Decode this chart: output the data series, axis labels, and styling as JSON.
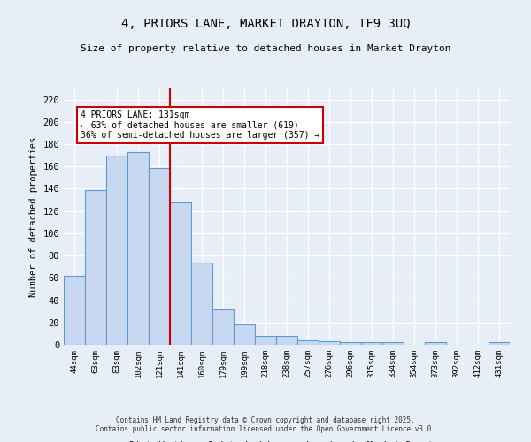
{
  "title1": "4, PRIORS LANE, MARKET DRAYTON, TF9 3UQ",
  "title2": "Size of property relative to detached houses in Market Drayton",
  "xlabel": "Distribution of detached houses by size in Market Drayton",
  "ylabel": "Number of detached properties",
  "categories": [
    "44sqm",
    "63sqm",
    "83sqm",
    "102sqm",
    "121sqm",
    "141sqm",
    "160sqm",
    "179sqm",
    "199sqm",
    "218sqm",
    "238sqm",
    "257sqm",
    "276sqm",
    "296sqm",
    "315sqm",
    "334sqm",
    "354sqm",
    "373sqm",
    "392sqm",
    "412sqm",
    "431sqm"
  ],
  "values": [
    62,
    139,
    170,
    173,
    159,
    128,
    74,
    32,
    18,
    8,
    8,
    4,
    3,
    2,
    2,
    2,
    0,
    2,
    0,
    0,
    2
  ],
  "bar_color": "#c8d8f0",
  "bar_edge_color": "#5b9bd5",
  "highlight_bar_index": 4,
  "highlight_line_color": "#cc0000",
  "annotation_text": "4 PRIORS LANE: 131sqm\n← 63% of detached houses are smaller (619)\n36% of semi-detached houses are larger (357) →",
  "annotation_box_color": "#ffffff",
  "annotation_border_color": "#cc0000",
  "ylim": [
    0,
    230
  ],
  "yticks": [
    0,
    20,
    40,
    60,
    80,
    100,
    120,
    140,
    160,
    180,
    200,
    220
  ],
  "background_color": "#e8eef8",
  "grid_color": "#ffffff",
  "footer1": "Contains HM Land Registry data © Crown copyright and database right 2025.",
  "footer2": "Contains public sector information licensed under the Open Government Licence v3.0."
}
